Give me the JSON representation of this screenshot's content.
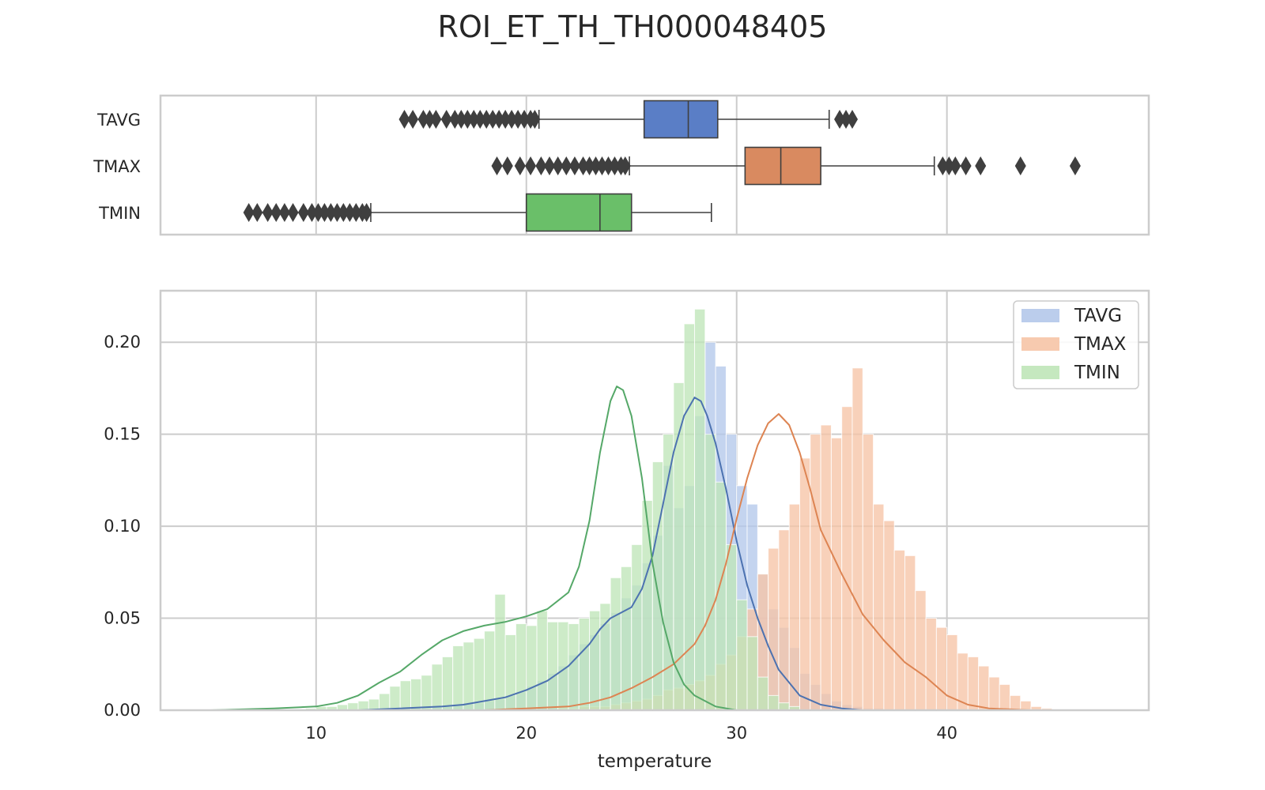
{
  "title": "ROI_ET_TH_TH000048405",
  "colors": {
    "TAVG": "#4c72b0",
    "TMAX": "#dd8452",
    "TMIN": "#55a868",
    "TAVG_box": "#5a7ec6",
    "TMAX_box": "#d98a60",
    "TMIN_box": "#6abf69",
    "TAVG_hist": "#b4c8ea",
    "TMAX_hist": "#f6c4a6",
    "TMIN_hist": "#bfe5b8",
    "grid": "#cccccc",
    "frame": "#cccccc",
    "outlier": "#3f3f3f"
  },
  "chart_data": [
    {
      "type": "box",
      "categories": [
        "TAVG",
        "TMAX",
        "TMIN"
      ],
      "xlim": [
        2.6,
        49.6
      ],
      "xticks": [
        10,
        20,
        30,
        40
      ],
      "grid": true,
      "boxes": [
        {
          "name": "TAVG",
          "whislo": 20.6,
          "q1": 25.6,
          "med": 27.7,
          "q3": 29.1,
          "whishi": 34.4,
          "fliers": [
            14.2,
            14.6,
            15.1,
            15.4,
            15.7,
            16.2,
            16.6,
            16.9,
            17.2,
            17.5,
            17.8,
            18.1,
            18.4,
            18.7,
            19.0,
            19.3,
            19.6,
            19.9,
            20.2,
            20.4,
            34.9,
            35.2,
            35.5
          ]
        },
        {
          "name": "TMAX",
          "whislo": 24.9,
          "q1": 30.4,
          "med": 32.1,
          "q3": 34.0,
          "whishi": 39.4,
          "fliers": [
            18.6,
            19.1,
            19.7,
            20.2,
            20.7,
            21.1,
            21.5,
            21.9,
            22.3,
            22.7,
            23.0,
            23.3,
            23.6,
            23.9,
            24.2,
            24.5,
            24.7,
            39.8,
            40.1,
            40.4,
            40.9,
            41.6,
            43.5,
            46.1
          ]
        },
        {
          "name": "TMIN",
          "whislo": 12.6,
          "q1": 20.0,
          "med": 23.5,
          "q3": 25.0,
          "whishi": 28.8,
          "fliers": [
            6.8,
            7.2,
            7.7,
            8.1,
            8.5,
            8.9,
            9.4,
            9.8,
            10.1,
            10.4,
            10.7,
            11.0,
            11.3,
            11.6,
            11.9,
            12.2,
            12.4
          ]
        }
      ]
    },
    {
      "type": "histogram",
      "xlabel": "temperature",
      "ylabel": "",
      "xlim": [
        2.6,
        49.6
      ],
      "ylim": [
        0,
        0.228
      ],
      "xticks": [
        10,
        20,
        30,
        40
      ],
      "yticks": [
        0.0,
        0.05,
        0.1,
        0.15,
        0.2
      ],
      "ytick_labels": [
        "0.00",
        "0.05",
        "0.10",
        "0.15",
        "0.20"
      ],
      "grid": true,
      "legend": {
        "position": "top-right",
        "entries": [
          "TAVG",
          "TMAX",
          "TMIN"
        ]
      },
      "series": [
        {
          "name": "TAVG",
          "bin_start": 14.0,
          "bin_width": 0.5,
          "values": [
            0.001,
            0.001,
            0.001,
            0.002,
            0.002,
            0.003,
            0.004,
            0.004,
            0.005,
            0.006,
            0.008,
            0.01,
            0.013,
            0.016,
            0.02,
            0.024,
            0.03,
            0.036,
            0.041,
            0.047,
            0.053,
            0.061,
            0.068,
            0.08,
            0.095,
            0.133,
            0.11,
            0.122,
            0.16,
            0.2,
            0.187,
            0.15,
            0.122,
            0.112,
            0.074,
            0.055,
            0.045,
            0.034,
            0.02,
            0.014,
            0.009,
            0.005,
            0.003,
            0.002,
            0.001,
            0.001
          ]
        },
        {
          "name": "TMAX",
          "bin_start": 21.5,
          "bin_width": 0.5,
          "values": [
            0.001,
            0.001,
            0.002,
            0.002,
            0.002,
            0.003,
            0.004,
            0.005,
            0.006,
            0.008,
            0.011,
            0.012,
            0.014,
            0.016,
            0.019,
            0.025,
            0.03,
            0.04,
            0.055,
            0.074,
            0.088,
            0.098,
            0.112,
            0.137,
            0.15,
            0.155,
            0.148,
            0.165,
            0.186,
            0.15,
            0.112,
            0.103,
            0.087,
            0.084,
            0.065,
            0.05,
            0.045,
            0.041,
            0.031,
            0.029,
            0.024,
            0.018,
            0.014,
            0.008,
            0.005,
            0.002,
            0.001
          ]
        },
        {
          "name": "TMIN",
          "bin_start": 9.5,
          "bin_width": 0.5,
          "values": [
            0.001,
            0.002,
            0.002,
            0.003,
            0.004,
            0.005,
            0.006,
            0.009,
            0.013,
            0.016,
            0.017,
            0.019,
            0.025,
            0.029,
            0.035,
            0.037,
            0.039,
            0.043,
            0.063,
            0.041,
            0.047,
            0.046,
            0.054,
            0.048,
            0.048,
            0.047,
            0.05,
            0.054,
            0.058,
            0.072,
            0.078,
            0.09,
            0.114,
            0.135,
            0.15,
            0.178,
            0.21,
            0.218,
            0.15,
            0.124,
            0.09,
            0.06,
            0.04,
            0.018,
            0.008,
            0.004,
            0.002
          ]
        }
      ],
      "kde": [
        {
          "name": "TAVG",
          "x": [
            12,
            14,
            16,
            17,
            18,
            19,
            20,
            21,
            22,
            23,
            23.5,
            24,
            25,
            25.5,
            26,
            26.5,
            27,
            27.5,
            28,
            28.3,
            28.6,
            29,
            29.5,
            30,
            30.5,
            31,
            31.5,
            32,
            33,
            34,
            35,
            36
          ],
          "y": [
            0,
            0.001,
            0.002,
            0.003,
            0.005,
            0.007,
            0.011,
            0.016,
            0.024,
            0.036,
            0.044,
            0.05,
            0.056,
            0.066,
            0.084,
            0.112,
            0.14,
            0.16,
            0.17,
            0.168,
            0.16,
            0.145,
            0.12,
            0.092,
            0.068,
            0.05,
            0.035,
            0.022,
            0.008,
            0.003,
            0.001,
            0
          ]
        },
        {
          "name": "TMAX",
          "x": [
            18,
            20,
            22,
            23,
            24,
            25,
            26,
            27,
            28,
            28.5,
            29,
            29.5,
            30,
            30.5,
            31,
            31.5,
            32,
            32.5,
            33,
            33.5,
            34,
            35,
            36,
            37,
            38,
            39,
            40,
            41,
            42,
            44
          ],
          "y": [
            0,
            0.001,
            0.002,
            0.004,
            0.007,
            0.012,
            0.018,
            0.025,
            0.036,
            0.046,
            0.06,
            0.08,
            0.104,
            0.126,
            0.144,
            0.156,
            0.161,
            0.155,
            0.14,
            0.12,
            0.098,
            0.074,
            0.052,
            0.038,
            0.026,
            0.018,
            0.008,
            0.003,
            0.001,
            0
          ]
        },
        {
          "name": "TMIN",
          "x": [
            5,
            8,
            10,
            11,
            12,
            13,
            14,
            15,
            16,
            17,
            18,
            19,
            20,
            21,
            22,
            22.5,
            23,
            23.5,
            24,
            24.3,
            24.6,
            25,
            25.5,
            26,
            26.5,
            27,
            27.5,
            28,
            29,
            30
          ],
          "y": [
            0,
            0.001,
            0.002,
            0.004,
            0.008,
            0.015,
            0.021,
            0.03,
            0.038,
            0.043,
            0.046,
            0.048,
            0.051,
            0.055,
            0.064,
            0.078,
            0.103,
            0.14,
            0.168,
            0.176,
            0.174,
            0.16,
            0.126,
            0.08,
            0.048,
            0.026,
            0.014,
            0.008,
            0.002,
            0
          ]
        }
      ]
    }
  ]
}
